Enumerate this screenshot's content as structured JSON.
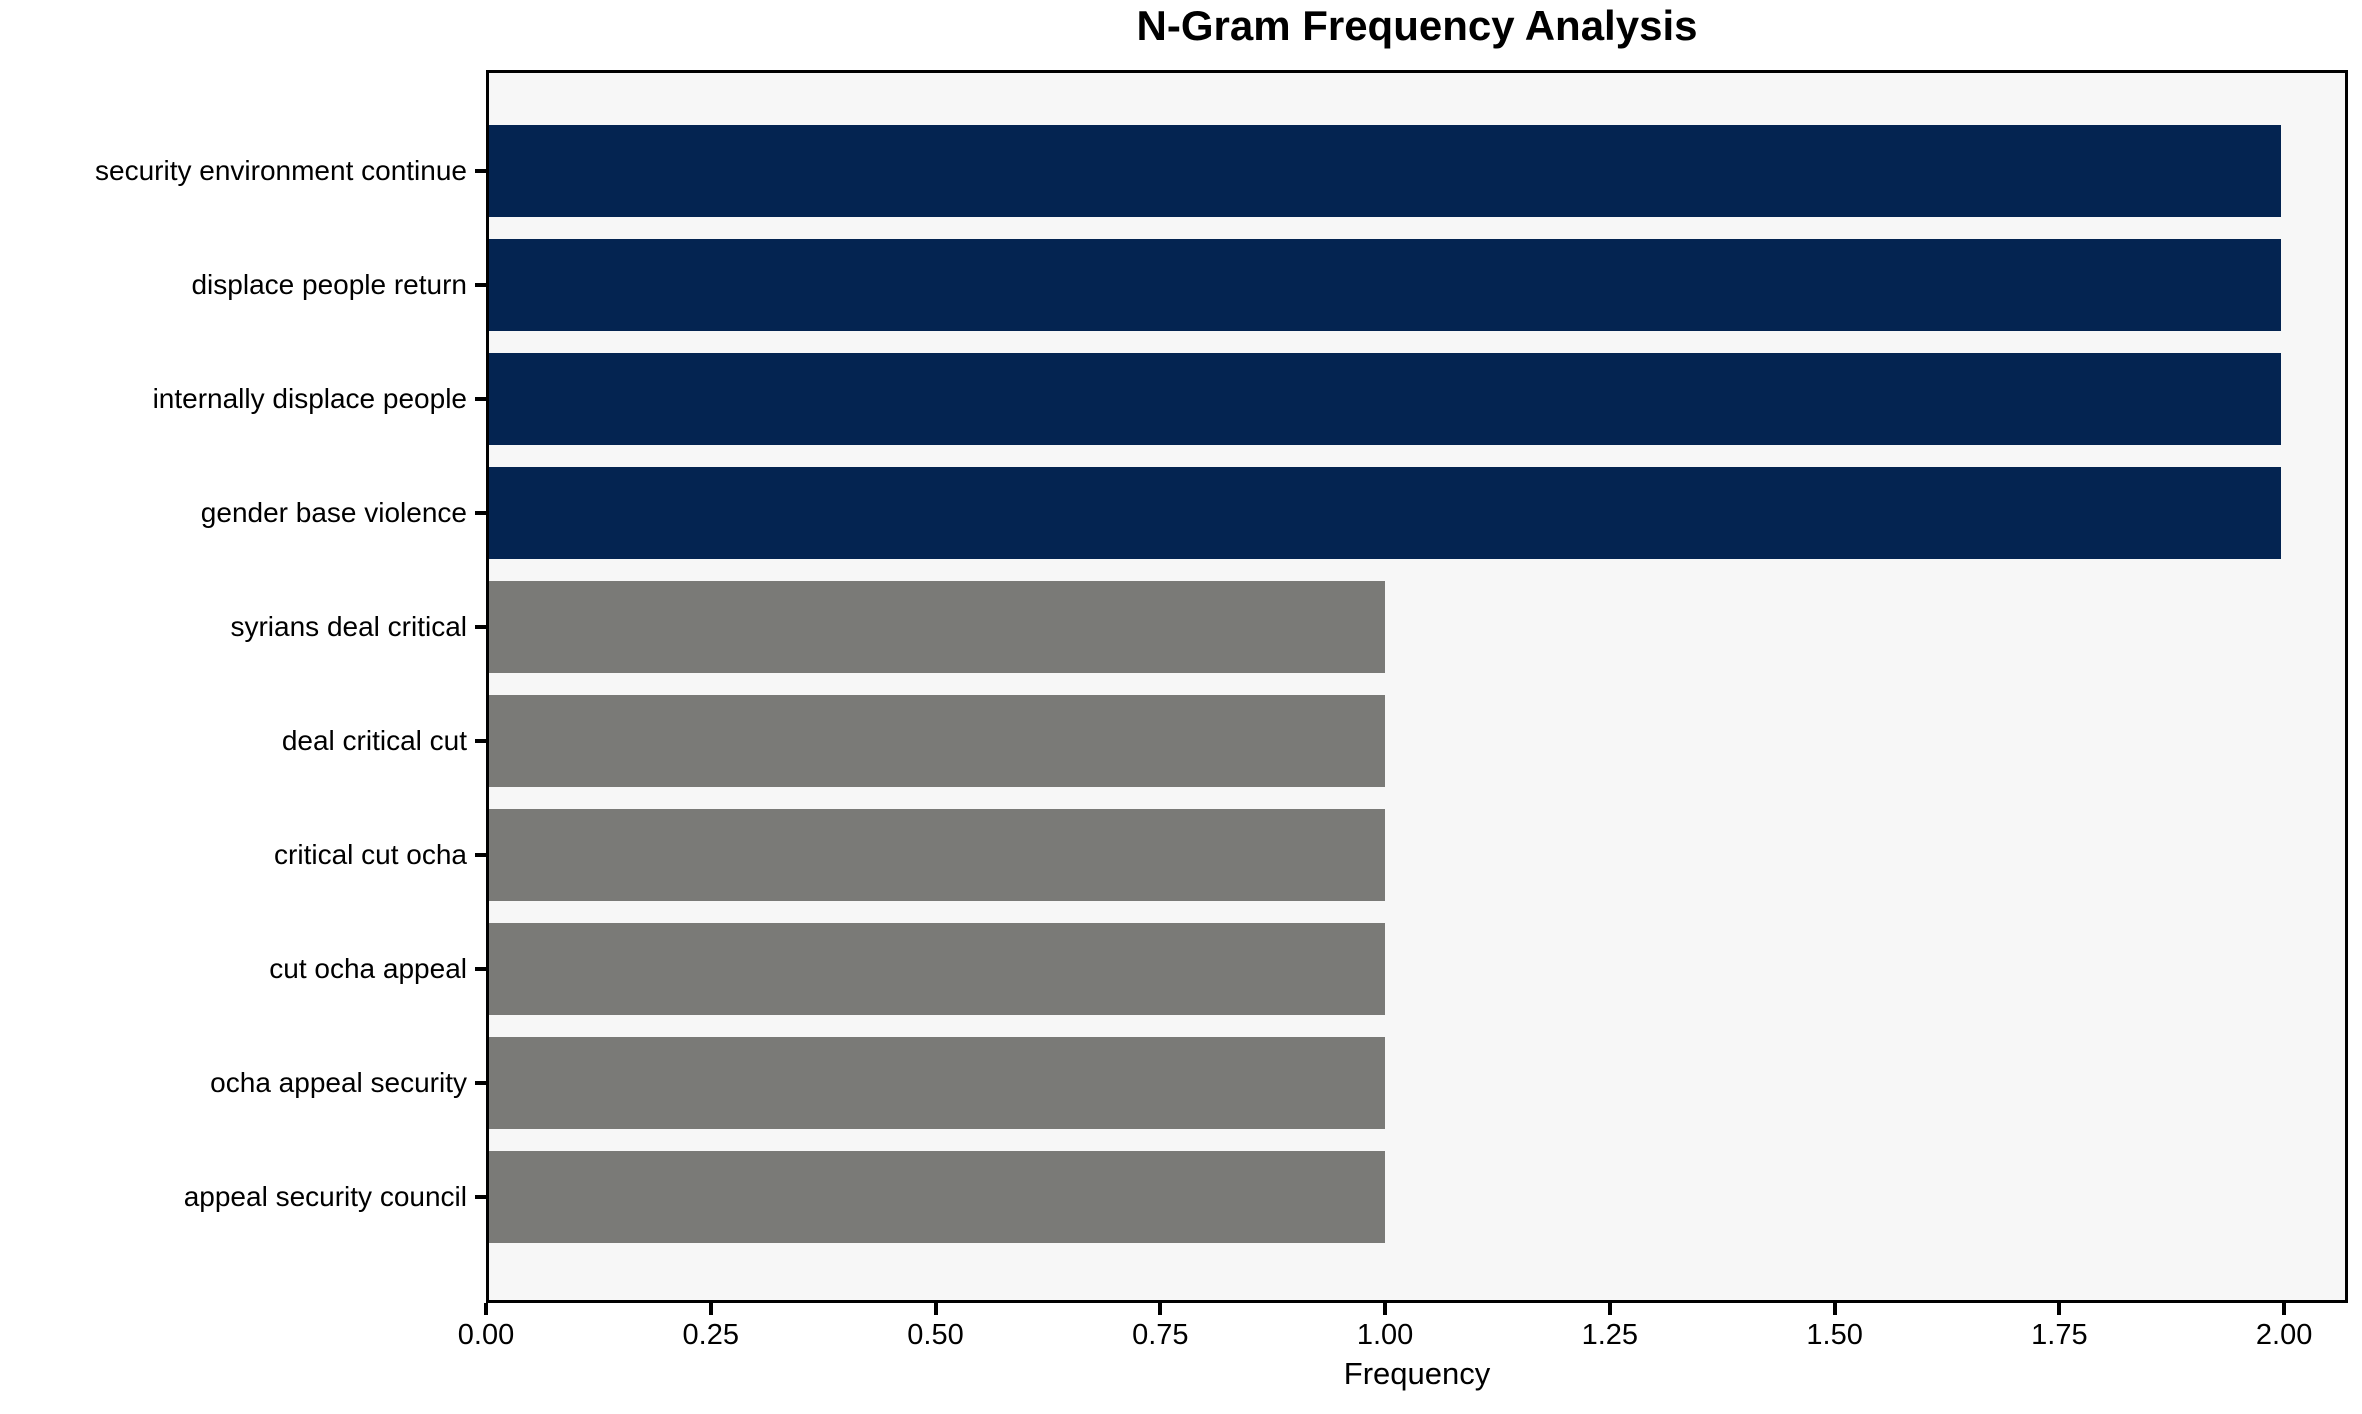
{
  "chart_data": {
    "type": "bar",
    "orientation": "horizontal",
    "title": "N-Gram Frequency Analysis",
    "xlabel": "Frequency",
    "ylabel": "",
    "categories": [
      "security environment continue",
      "displace people return",
      "internally displace people",
      "gender base violence",
      "syrians deal critical",
      "deal critical cut",
      "critical cut ocha",
      "cut ocha appeal",
      "ocha appeal security",
      "appeal security council"
    ],
    "values": [
      2,
      2,
      2,
      2,
      1,
      1,
      1,
      1,
      1,
      1
    ],
    "bar_colors": [
      "#042451",
      "#042451",
      "#042451",
      "#042451",
      "#7a7a77",
      "#7a7a77",
      "#7a7a77",
      "#7a7a77",
      "#7a7a77",
      "#7a7a77"
    ],
    "highlight_color": "#042451",
    "default_color": "#7a7a77",
    "xlim": [
      0,
      2.071
    ],
    "xticks": [
      0,
      0.25,
      0.5,
      0.75,
      1.0,
      1.25,
      1.5,
      1.75,
      2.0
    ],
    "xtick_labels": [
      "0.00",
      "0.25",
      "0.50",
      "0.75",
      "1.00",
      "1.25",
      "1.50",
      "1.75",
      "2.00"
    ],
    "plot_background": "#f7f7f7",
    "figure_background": "#ffffff",
    "spine_color": "#000000",
    "grid": false,
    "legend": null
  }
}
